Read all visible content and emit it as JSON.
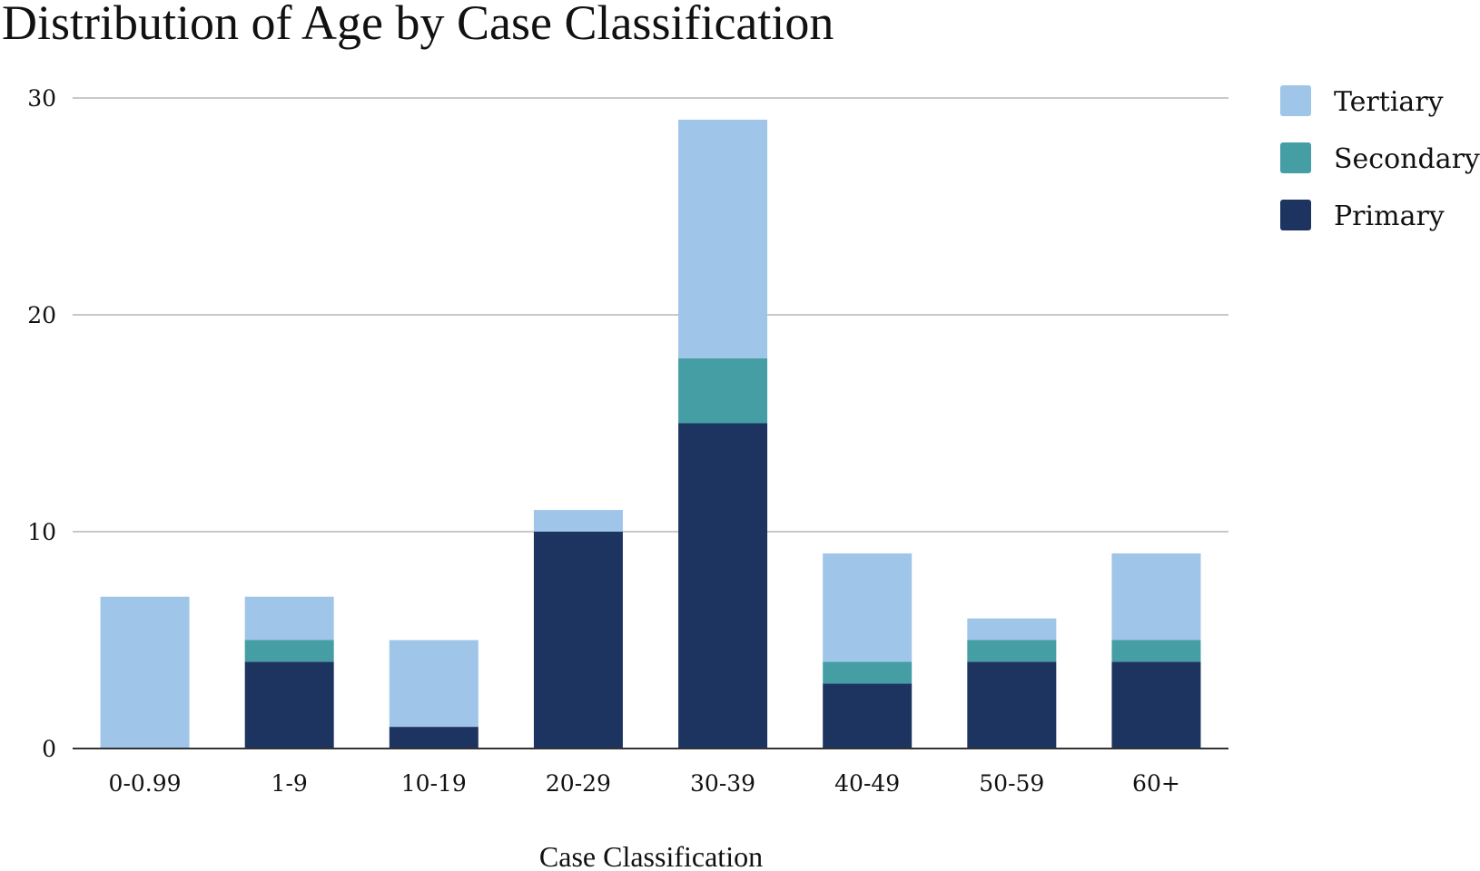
{
  "chart_data": {
    "type": "bar",
    "stacked": true,
    "title": "Distribution of Age by Case Classification",
    "xlabel": "Case Classification",
    "ylabel": "",
    "ylim": [
      0,
      30
    ],
    "yticks": [
      0,
      10,
      20,
      30
    ],
    "grid": true,
    "legend_position": "top-right",
    "categories": [
      "0-0.99",
      "1-9",
      "10-19",
      "20-29",
      "30-39",
      "40-49",
      "50-59",
      "60+"
    ],
    "series": [
      {
        "name": "Primary",
        "color": "#1d3461",
        "values": [
          0,
          4,
          1,
          10,
          15,
          3,
          4,
          4
        ]
      },
      {
        "name": "Secondary",
        "color": "#469ea5",
        "values": [
          0,
          1,
          0,
          0,
          3,
          1,
          1,
          1
        ]
      },
      {
        "name": "Tertiary",
        "color": "#9fc5e8",
        "values": [
          7,
          2,
          4,
          1,
          11,
          5,
          1,
          4
        ]
      }
    ],
    "legend_order": [
      "Tertiary",
      "Secondary",
      "Primary"
    ]
  }
}
